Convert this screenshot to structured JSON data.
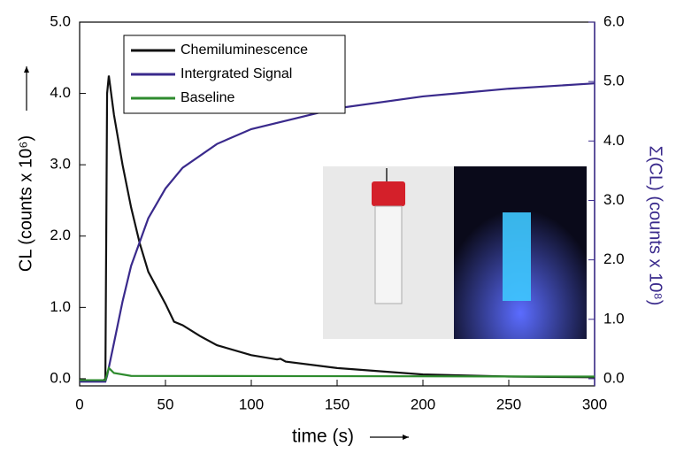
{
  "chart_data": {
    "type": "line",
    "xlabel": "time (s)",
    "ylabel": "CL (counts x 10⁶)",
    "y2label": "Σ(CL) (counts x 10⁸)",
    "xlim": [
      0,
      300
    ],
    "xticks": [
      0,
      50,
      100,
      150,
      200,
      250,
      300
    ],
    "ylim": [
      -0.1,
      5.0
    ],
    "yticks": [
      {
        "value": 0,
        "label": "0.0"
      },
      {
        "value": 1,
        "label": "1.0"
      },
      {
        "value": 2,
        "label": "2.0"
      },
      {
        "value": 3,
        "label": "3.0"
      },
      {
        "value": 4,
        "label": "4.0"
      },
      {
        "value": 5,
        "label": "5.0"
      }
    ],
    "y2lim": [
      -0.12,
      6.0
    ],
    "y2ticks": [
      {
        "value": 0,
        "label": "0.0"
      },
      {
        "value": 1,
        "label": "1.0"
      },
      {
        "value": 2,
        "label": "2.0"
      },
      {
        "value": 3,
        "label": "3.0"
      },
      {
        "value": 4,
        "label": "4.0"
      },
      {
        "value": 5,
        "label": "5.0"
      },
      {
        "value": 6,
        "label": "6.0"
      }
    ],
    "legend": "upper left",
    "series": [
      {
        "name": "Chemiluminescence",
        "color": "#111111",
        "x": [
          0,
          14,
          15,
          16,
          17,
          20,
          25,
          30,
          35,
          40,
          50,
          55,
          60,
          70,
          80,
          100,
          115,
          117,
          120,
          150,
          200,
          250,
          300
        ],
        "values": [
          -0.02,
          -0.02,
          0,
          4.0,
          4.25,
          3.7,
          3.0,
          2.4,
          1.9,
          1.5,
          1.05,
          0.8,
          0.75,
          0.6,
          0.47,
          0.33,
          0.27,
          0.28,
          0.24,
          0.15,
          0.06,
          0.03,
          0.02
        ]
      },
      {
        "name": "Intergrated Signal",
        "color": "#3a2a8c",
        "axis": "y2",
        "x": [
          0,
          15,
          16,
          20,
          25,
          30,
          40,
          50,
          60,
          80,
          100,
          150,
          200,
          250,
          300
        ],
        "values": [
          -0.05,
          -0.05,
          0.05,
          0.6,
          1.3,
          1.9,
          2.7,
          3.2,
          3.55,
          3.95,
          4.2,
          4.55,
          4.75,
          4.88,
          4.97
        ]
      },
      {
        "name": "Baseline",
        "color": "#2e8b2e",
        "x": [
          0,
          15,
          17,
          20,
          30,
          300
        ],
        "values": [
          -0.02,
          -0.02,
          0.15,
          0.08,
          0.04,
          0.03
        ]
      }
    ]
  }
}
